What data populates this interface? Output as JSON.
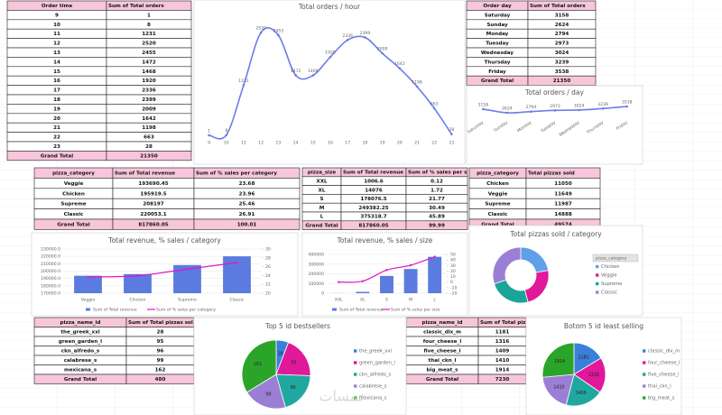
{
  "tables": [
    {
      "header": [
        "Order time",
        "Sum of Total orders"
      ],
      "rows": [
        [
          9,
          1
        ],
        [
          10,
          8
        ],
        [
          11,
          1231
        ],
        [
          12,
          2520
        ],
        [
          13,
          2455
        ],
        [
          14,
          1472
        ],
        [
          15,
          1468
        ],
        [
          16,
          1920
        ],
        [
          17,
          2336
        ],
        [
          18,
          2399
        ],
        [
          19,
          2009
        ],
        [
          20,
          1642
        ],
        [
          21,
          1198
        ],
        [
          22,
          663
        ],
        [
          23,
          28
        ],
        [
          "Grand Total",
          21350
        ]
      ]
    },
    {
      "header": [
        "Order day",
        "Sum of Total orders"
      ],
      "rows": [
        [
          "Saturday",
          3158
        ],
        [
          "Sunday",
          2624
        ],
        [
          "Monday",
          2794
        ],
        [
          "Tuesday",
          2973
        ],
        [
          "Wednesday",
          3024
        ],
        [
          "Thursday",
          3239
        ],
        [
          "Friday",
          3538
        ],
        [
          "Grand Total",
          21350
        ]
      ]
    },
    {
      "header": [
        "pizza_category",
        "Sum of Total revenue",
        "Sum of % sales per category"
      ],
      "rows": [
        [
          "Veggie",
          193690.45,
          23.68
        ],
        [
          "Chicken",
          195919.5,
          23.96
        ],
        [
          "Supreme",
          208197,
          25.46
        ],
        [
          "Classic",
          220053.1,
          26.91
        ],
        [
          "Grand Total",
          817860.05,
          100.01
        ]
      ]
    },
    {
      "header": [
        "pizza_size",
        "Sum of Total revenue",
        "Sum of % sales per size"
      ],
      "rows": [
        [
          "XXL",
          1006.6,
          0.12
        ],
        [
          "XL",
          14076,
          1.72
        ],
        [
          "S",
          178076.5,
          21.77
        ],
        [
          "M",
          249382.25,
          30.49
        ],
        [
          "L",
          375318.7,
          45.89
        ],
        [
          "Grand Total",
          817860.05,
          99.99
        ]
      ]
    },
    {
      "header": [
        "pizza_category",
        "Total pizzas sold"
      ],
      "rows": [
        [
          "Chicken",
          11050
        ],
        [
          "Veggie",
          11649
        ],
        [
          "Supreme",
          11987
        ],
        [
          "Classic",
          14888
        ],
        [
          "Grand Total",
          49574
        ]
      ]
    },
    {
      "header": [
        "pizza_name_id",
        "Sum of Total pizzas sold"
      ],
      "rows": [
        [
          "the_greek_xxl",
          28
        ],
        [
          "green_garden_l",
          95
        ],
        [
          "ckn_alfredo_s",
          96
        ],
        [
          "calabrese_s",
          99
        ],
        [
          "mexicana_s",
          162
        ],
        [
          "Grand Total",
          480
        ]
      ]
    },
    {
      "header": [
        "pizza_name_id",
        "Sum of Total pizzas sold"
      ],
      "rows": [
        [
          "classic_dlx_m",
          1181
        ],
        [
          "four_cheese_l",
          1316
        ],
        [
          "five_cheese_l",
          1409
        ],
        [
          "thai_ckn_l",
          1410
        ],
        [
          "big_meat_s",
          1914
        ],
        [
          "Grand Total",
          7230
        ]
      ]
    }
  ],
  "chart_data": [
    {
      "type": "line",
      "title": "Total orders / hour",
      "color": "#6b7ee8",
      "categories": [
        9,
        10,
        11,
        12,
        13,
        14,
        15,
        16,
        17,
        18,
        19,
        20,
        21,
        22,
        23
      ],
      "values": [
        1,
        8,
        1231,
        2520,
        2455,
        1472,
        1468,
        1920,
        2336,
        2399,
        2009,
        1642,
        1198,
        663,
        28
      ]
    },
    {
      "type": "line",
      "title": "Total orders / day",
      "color": "#6b7ee8",
      "categories": [
        "Saturday",
        "Sunday",
        "Monday",
        "Tuesday",
        "Wednesday",
        "Thursday",
        "Friday"
      ],
      "values": [
        3158,
        2624,
        2794,
        2973,
        3024,
        3239,
        3538
      ]
    },
    {
      "type": "combo",
      "title": "Total revenue, % sales / category",
      "categories": [
        "Veggie",
        "Chicken",
        "Supreme",
        "Classic"
      ],
      "series": [
        {
          "name": "Sum of Total revenue",
          "type": "bar",
          "color": "#5b7be0",
          "values": [
            193690.45,
            195919.5,
            208197,
            220053.1
          ]
        },
        {
          "name": "Sum of % sales per category",
          "type": "line",
          "axis": "y2",
          "color": "#e018c8",
          "values": [
            23.68,
            23.96,
            25.46,
            26.91
          ]
        }
      ],
      "ylim": [
        170000,
        230000
      ],
      "yticks": [
        {
          "value": 170000,
          "label": "170000.0"
        },
        {
          "value": 180000,
          "label": "180000.0"
        },
        {
          "value": 190000,
          "label": "190000.0"
        },
        {
          "value": 200000,
          "label": "200000.0"
        },
        {
          "value": 210000,
          "label": "210000.0"
        },
        {
          "value": 220000,
          "label": "220000.0"
        },
        {
          "value": 230000,
          "label": "230000.0"
        }
      ],
      "y2lim": [
        20,
        30
      ],
      "y2ticks": [
        20,
        22,
        24,
        26,
        28,
        30
      ]
    },
    {
      "type": "combo",
      "title": "Total revenue, % sales / size",
      "categories": [
        "XXL",
        "XL",
        "S",
        "M",
        "L"
      ],
      "series": [
        {
          "name": "Sum of Total revenue",
          "type": "bar",
          "color": "#5b7be0",
          "values": [
            1006.6,
            14076,
            178076.5,
            249382.25,
            375318.7
          ]
        },
        {
          "name": "Sum of % sales per size",
          "type": "line",
          "axis": "y2",
          "color": "#e018c8",
          "values": [
            0.12,
            1.72,
            21.77,
            30.49,
            45.89
          ]
        }
      ],
      "ylim": [
        0,
        400000
      ],
      "yticks": [
        0,
        100000,
        200000,
        300000,
        400000
      ],
      "y2lim": [
        -20,
        50
      ],
      "y2ticks": [
        -20,
        -10,
        0,
        10,
        20,
        30,
        40,
        50
      ]
    },
    {
      "type": "donut",
      "title": "Total pizzas sold / category",
      "legend_title": "pizza_category",
      "categories": [
        "Chicken",
        "Veggie",
        "Supreme",
        "Classic"
      ],
      "values": [
        11050,
        11649,
        11987,
        14888
      ],
      "colors": [
        "#5fa0e8",
        "#e0189a",
        "#1aa59a",
        "#9b7fd4"
      ]
    },
    {
      "type": "pie",
      "title": "Top 5 id bestsellers",
      "categories": [
        "the_greek_xxl",
        "green_garden_l",
        "ckn_alfredo_s",
        "calabrese_s",
        "mexicana_s"
      ],
      "values": [
        28,
        95,
        96,
        99,
        162
      ],
      "colors": [
        "#3a7fd8",
        "#e0189a",
        "#20a8a0",
        "#9b7fd4",
        "#2aa52a"
      ]
    },
    {
      "type": "pie",
      "title": "Botom 5 id least selling",
      "categories": [
        "classic_dlx_m",
        "four_cheese_l",
        "five_cheese_l",
        "thai_ckn_l",
        "big_meat_s"
      ],
      "values": [
        1181,
        1316,
        1409,
        1410,
        1914
      ],
      "colors": [
        "#3a7fd8",
        "#e0189a",
        "#20a8a0",
        "#9b7fd4",
        "#2aa52a"
      ]
    }
  ],
  "watermark": "خمسات"
}
